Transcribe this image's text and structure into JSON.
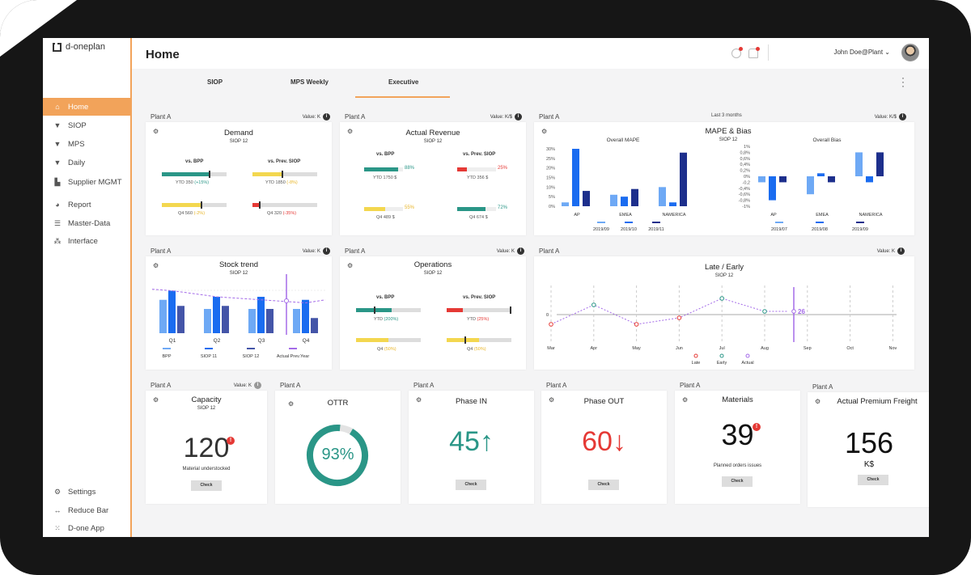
{
  "app": {
    "logo": "d-oneplan",
    "title": "Home",
    "user": "John Doe@Plant"
  },
  "sidebar": {
    "items": [
      {
        "label": "Home",
        "icon": "home-icon"
      },
      {
        "label": "SIOP",
        "icon": "graduation-cap-icon"
      },
      {
        "label": "MPS",
        "icon": "graduation-cap-icon"
      },
      {
        "label": "Daily",
        "icon": "graduation-cap-icon"
      },
      {
        "label": "Supplier MGMT",
        "icon": "factory-icon"
      },
      {
        "label": "Report",
        "icon": "pie-chart-icon"
      },
      {
        "label": "Master-Data",
        "icon": "database-icon"
      },
      {
        "label": "Interface",
        "icon": "network-icon"
      }
    ],
    "bottom": [
      {
        "label": "Settings",
        "icon": "settings-icon"
      },
      {
        "label": "Reduce Bar",
        "icon": "arrows-icon"
      },
      {
        "label": "D-one App",
        "icon": "grid-icon"
      }
    ]
  },
  "tabs": [
    "SIOP",
    "MPS Weekly",
    "Executive"
  ],
  "colors": {
    "accent": "#f2a35a",
    "teal": "#2a9687",
    "yellow": "#f3d74f",
    "red": "#e53935",
    "blue_light": "#6ea9f5",
    "blue": "#1a6cf0",
    "blue_dark": "#1d2f8c",
    "purple": "#a46be8"
  },
  "cards": {
    "demand": {
      "plant": "Plant A",
      "value": "Value: K",
      "title": "Demand",
      "sub": "SIOP 12",
      "c1": "vs. BPP",
      "c2": "vs. Prev. SIOP",
      "ytd_bpp": "YTD 350",
      "ytd_bpp_pct": "(+15%)",
      "ytd_prev": "YTD 1850",
      "ytd_prev_pct": "(-8%)",
      "q4_bpp": "Q4 560",
      "q4_bpp_pct": "(-2%)",
      "q4_prev": "Q4 320",
      "q4_prev_pct": "(-35%)",
      "bars": {
        "ytd_bpp": 0.72,
        "ytd_prev": 0.45,
        "q4_bpp": 0.6,
        "q4_prev": 0.1
      }
    },
    "revenue": {
      "plant": "Plant A",
      "value": "Value: K/$",
      "title": "Actual Revenue",
      "sub": "SIOP 12",
      "c1": "vs. BPP",
      "c2": "vs. Prev. SIOP",
      "ytd_bpp_pct": "88%",
      "ytd_bpp": "YTD 1750 $",
      "ytd_prev_pct": "25%",
      "ytd_prev": "YTD 356 $",
      "q4_bpp_pct": "55%",
      "q4_bpp": "Q4 489 $",
      "q4_prev_pct": "72%",
      "q4_prev": "Q4 674 $",
      "bars": {
        "ytd_bpp": 0.88,
        "ytd_prev": 0.25,
        "q4_bpp": 0.55,
        "q4_prev": 0.72
      }
    },
    "mape": {
      "plant": "Plant A",
      "range": "Last 3 months",
      "value": "Value: K/$",
      "title": "MAPE & Bias",
      "sub": "SIOP 12"
    },
    "stock": {
      "plant": "Plant A",
      "value": "Value: K",
      "title": "Stock trend",
      "sub": "SIOP 12"
    },
    "operations": {
      "plant": "Plant A",
      "value": "Value: K",
      "title": "Operations",
      "sub": "SIOP 12",
      "c1": "vs. BPP",
      "c2": "vs. Prev. SIOP",
      "ytd_bpp": "YTD",
      "ytd_bpp_pct": "(200%)",
      "ytd_prev": "YTD",
      "ytd_prev_pct": "(25%)",
      "q4_bpp": "Q4",
      "q4_bpp_pct": "(50%)",
      "q4_prev": "Q4",
      "q4_prev_pct": "(50%)",
      "bars": {
        "ytd_bpp": 0.55,
        "ytd_prev": 0.25,
        "q4_bpp": 0.5,
        "q4_prev": 0.5
      }
    },
    "late": {
      "plant": "Plant A",
      "value": "Value: K",
      "title": "Late / Early",
      "sub": "SIOP 12"
    },
    "capacity": {
      "plant": "Plant A",
      "value": "Value: K",
      "title": "Capacity",
      "sub": "SIOP 12",
      "num": "120",
      "alert": "!",
      "note": "Material understocked",
      "btn": "Check"
    },
    "ottr": {
      "plant": "Plant A",
      "title": "OTTR",
      "num": "93%",
      "fill": 0.93
    },
    "phasein": {
      "plant": "Plant A",
      "title": "Phase IN",
      "num": "45",
      "arrow": "↑",
      "btn": "Check"
    },
    "phaseout": {
      "plant": "Plant A",
      "title": "Phase OUT",
      "num": "60",
      "arrow": "↓",
      "btn": "Check"
    },
    "materials": {
      "plant": "Plant A",
      "title": "Materials",
      "num": "39",
      "alert": "!",
      "note": "Planned orders issues",
      "btn": "Check"
    },
    "freight": {
      "plant": "Plant A",
      "title": "Actual Premium Freight",
      "num": "156",
      "unit": "K$",
      "btn": "Check"
    }
  },
  "chart_data": [
    {
      "type": "bar",
      "title": "Overall MAPE",
      "categories": [
        "AP",
        "EMEA",
        "NAMERICA"
      ],
      "series": [
        {
          "name": "2019/09",
          "values": [
            2,
            6,
            10
          ]
        },
        {
          "name": "2019/10",
          "values": [
            30,
            5,
            2
          ]
        },
        {
          "name": "2019/11",
          "values": [
            8,
            9,
            28
          ]
        }
      ],
      "yticks": [
        "0%",
        "5%",
        "10%",
        "15%",
        "20%",
        "25%",
        "30%"
      ],
      "ylim": [
        0,
        30
      ]
    },
    {
      "type": "bar",
      "title": "Overall Bias",
      "categories": [
        "AP",
        "EMEA",
        "NAMERICA"
      ],
      "series": [
        {
          "name": "2019/07",
          "values": [
            -0.2,
            -0.6,
            0.8
          ]
        },
        {
          "name": "2019/08",
          "values": [
            -0.8,
            0.1,
            -0.2
          ]
        },
        {
          "name": "2019/09",
          "values": [
            -0.2,
            -0.2,
            0.8
          ]
        }
      ],
      "yticks": [
        "1%",
        "0,8%",
        "0,6%",
        "0,4%",
        "0,2%",
        "0%",
        "-0,2",
        "-0,4%",
        "-0,6%",
        "-0,8%",
        "-1%"
      ],
      "ylim": [
        -1,
        1
      ]
    },
    {
      "type": "bar",
      "title": "Stock trend",
      "categories": [
        "Q1",
        "Q2",
        "Q3",
        "Q4"
      ],
      "series": [
        {
          "name": "BPP",
          "values": [
            11,
            8,
            8,
            8
          ]
        },
        {
          "name": "SIOP 11",
          "values": [
            14,
            12,
            12,
            11
          ]
        },
        {
          "name": "SIOP 12",
          "values": [
            9,
            9,
            8,
            5
          ]
        },
        {
          "name": "Actual Prev.Year",
          "values": [
            14,
            12,
            11,
            10
          ]
        }
      ],
      "ylim": [
        0,
        16
      ]
    },
    {
      "type": "line",
      "title": "Late / Early",
      "x": [
        "Mar",
        "Apr",
        "May",
        "Jun",
        "Jul",
        "Aug",
        "Sep",
        "Oct",
        "Nov"
      ],
      "series": [
        {
          "name": "Late",
          "values": [
            -3,
            null,
            -3,
            -1,
            null,
            null,
            null,
            null,
            null
          ]
        },
        {
          "name": "Early",
          "values": [
            null,
            3,
            null,
            null,
            5,
            1,
            null,
            null,
            null
          ]
        },
        {
          "name": "Actual",
          "values": [
            -3,
            3,
            -3,
            -1,
            5,
            1,
            1,
            null,
            null
          ]
        }
      ],
      "marker": "26",
      "ytick": "0",
      "ylim": [
        -8,
        8
      ]
    }
  ]
}
